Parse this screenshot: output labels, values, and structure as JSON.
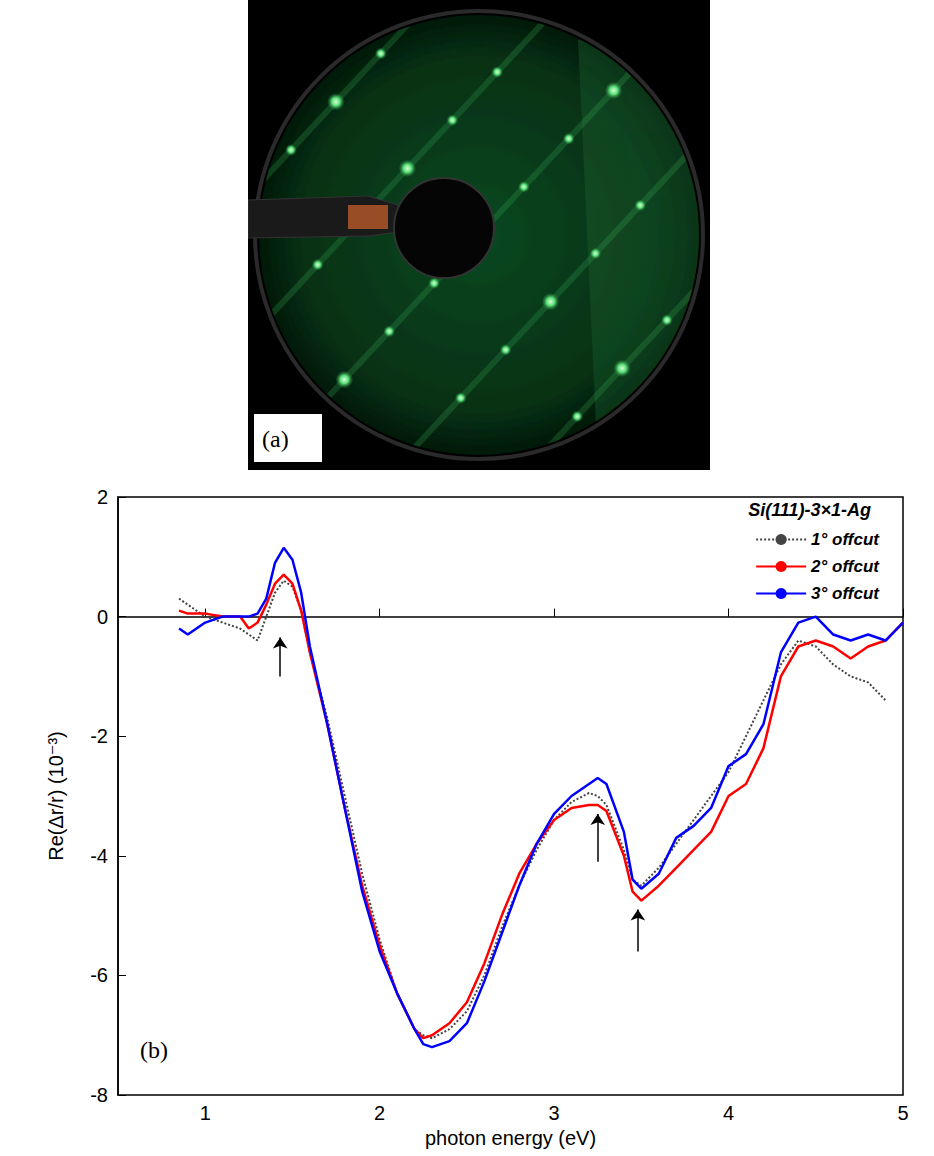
{
  "panel_a": {
    "label": "(a)"
  },
  "chart_data": {
    "type": "line",
    "title": "Si(111)-3×1-Ag",
    "panel_label": "(b)",
    "x_label": "photon energy (eV)",
    "y_label": "Re(Δr/r) (10⁻³)",
    "x": [
      0.85,
      0.9,
      1.0,
      1.1,
      1.2,
      1.25,
      1.3,
      1.35,
      1.4,
      1.45,
      1.5,
      1.55,
      1.6,
      1.7,
      1.8,
      1.9,
      2.0,
      2.1,
      2.2,
      2.25,
      2.3,
      2.4,
      2.5,
      2.6,
      2.7,
      2.8,
      2.9,
      3.0,
      3.1,
      3.2,
      3.25,
      3.3,
      3.4,
      3.45,
      3.5,
      3.6,
      3.7,
      3.8,
      3.9,
      4.0,
      4.1,
      4.2,
      4.3,
      4.4,
      4.5,
      4.6,
      4.7,
      4.8,
      4.9,
      5.0
    ],
    "series": [
      {
        "name": "1° offcut",
        "color": "#444444",
        "line_style": "dotted",
        "values": [
          0.3,
          0.2,
          0.0,
          -0.1,
          -0.2,
          -0.3,
          -0.4,
          0.0,
          0.4,
          0.6,
          0.5,
          0.1,
          -0.6,
          -1.7,
          -3.0,
          -4.3,
          -5.4,
          -6.3,
          -6.9,
          -7.0,
          -7.05,
          -6.9,
          -6.6,
          -6.0,
          -5.2,
          -4.5,
          -3.9,
          -3.4,
          -3.1,
          -2.95,
          -3.0,
          -3.15,
          -3.9,
          -4.4,
          -4.5,
          -4.2,
          -3.8,
          -3.4,
          -3.0,
          -2.6,
          -2.0,
          -1.4,
          -0.8,
          -0.4,
          -0.5,
          -0.8,
          -1.0,
          -1.1,
          -1.4,
          null
        ]
      },
      {
        "name": "2° offcut",
        "color": "#ff0000",
        "line_style": "solid",
        "values": [
          0.1,
          0.05,
          0.05,
          0.0,
          0.0,
          -0.2,
          -0.1,
          0.2,
          0.55,
          0.7,
          0.55,
          0.1,
          -0.6,
          -1.8,
          -3.2,
          -4.5,
          -5.5,
          -6.3,
          -6.9,
          -7.05,
          -7.0,
          -6.8,
          -6.45,
          -5.8,
          -5.0,
          -4.3,
          -3.8,
          -3.4,
          -3.2,
          -3.15,
          -3.15,
          -3.25,
          -4.0,
          -4.6,
          -4.75,
          -4.5,
          -4.2,
          -3.9,
          -3.6,
          -3.0,
          -2.8,
          -2.2,
          -1.0,
          -0.5,
          -0.4,
          -0.5,
          -0.7,
          -0.5,
          -0.4,
          -0.1
        ]
      },
      {
        "name": "3° offcut",
        "color": "#0000ff",
        "line_style": "solid",
        "values": [
          -0.2,
          -0.3,
          -0.1,
          0.0,
          0.0,
          0.0,
          0.05,
          0.3,
          0.9,
          1.15,
          0.95,
          0.4,
          -0.5,
          -1.8,
          -3.2,
          -4.6,
          -5.6,
          -6.3,
          -6.9,
          -7.15,
          -7.2,
          -7.1,
          -6.8,
          -6.1,
          -5.3,
          -4.5,
          -3.8,
          -3.3,
          -3.0,
          -2.8,
          -2.7,
          -2.8,
          -3.6,
          -4.4,
          -4.55,
          -4.3,
          -3.7,
          -3.5,
          -3.2,
          -2.5,
          -2.3,
          -1.8,
          -0.6,
          -0.1,
          0.0,
          -0.3,
          -0.4,
          -0.3,
          -0.4,
          -0.1
        ]
      }
    ],
    "arrows": [
      {
        "x": 1.43,
        "y_from": -1.0,
        "y_to": -0.35
      },
      {
        "x": 3.25,
        "y_from": -4.1,
        "y_to": -3.3
      },
      {
        "x": 3.48,
        "y_from": -5.6,
        "y_to": -4.9
      }
    ],
    "xlim": [
      0.5,
      5
    ],
    "xticks": [
      1,
      2,
      3,
      4,
      5
    ],
    "ylim": [
      -8,
      2
    ],
    "yticks": [
      -8,
      -6,
      -4,
      -2,
      0,
      2
    ],
    "grid": false,
    "legend": "upper right"
  }
}
